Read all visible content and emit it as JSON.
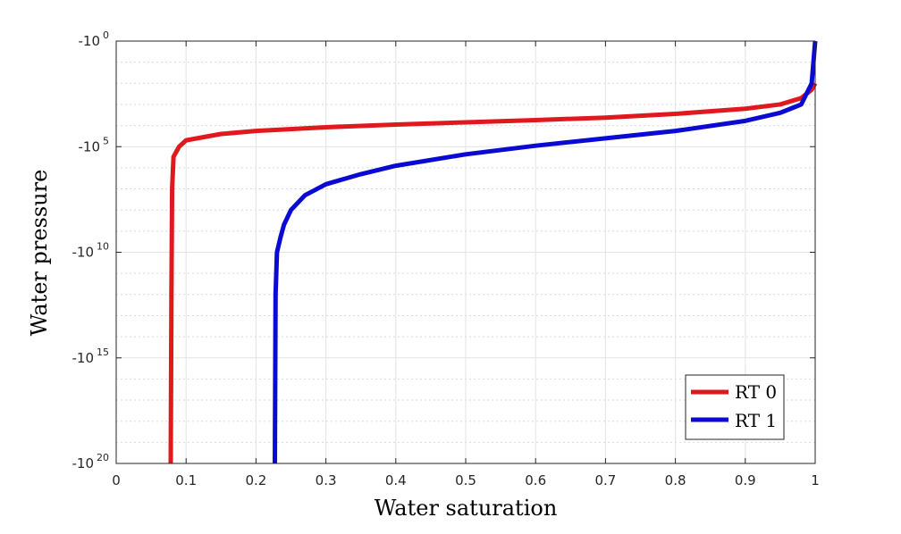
{
  "chart_data": {
    "type": "line",
    "title": "",
    "xlabel": "Water saturation",
    "ylabel": "Water pressure",
    "xlim": [
      0,
      1
    ],
    "ylim_log10_magnitude": [
      20,
      0
    ],
    "y_scale": "negative-log",
    "grid": true,
    "minor_grid": true,
    "legend_position": "bottom-right",
    "x_ticks": [
      "0",
      "0.1",
      "0.2",
      "0.3",
      "0.4",
      "0.5",
      "0.6",
      "0.7",
      "0.8",
      "0.9",
      "1"
    ],
    "y_ticks": [
      {
        "base": "-10",
        "exp": "0"
      },
      {
        "base": "-10",
        "exp": "5"
      },
      {
        "base": "-10",
        "exp": "10"
      },
      {
        "base": "-10",
        "exp": "15"
      },
      {
        "base": "-10",
        "exp": "20"
      }
    ],
    "series": [
      {
        "name": "RT 0",
        "color": "#e0191e",
        "points": [
          {
            "x": 0.078,
            "y": "-1e20"
          },
          {
            "x": 0.079,
            "y": "-1e12"
          },
          {
            "x": 0.08,
            "y": "-1e7"
          },
          {
            "x": 0.082,
            "y": "-3e5"
          },
          {
            "x": 0.09,
            "y": "-1e5"
          },
          {
            "x": 0.1,
            "y": "-5e4"
          },
          {
            "x": 0.15,
            "y": "-2.5e4"
          },
          {
            "x": 0.2,
            "y": "-1.8e4"
          },
          {
            "x": 0.3,
            "y": "-1.2e4"
          },
          {
            "x": 0.4,
            "y": "-9e3"
          },
          {
            "x": 0.5,
            "y": "-7e3"
          },
          {
            "x": 0.6,
            "y": "-5.5e3"
          },
          {
            "x": 0.7,
            "y": "-4.2e3"
          },
          {
            "x": 0.8,
            "y": "-2.8e3"
          },
          {
            "x": 0.9,
            "y": "-1.6e3"
          },
          {
            "x": 0.95,
            "y": "-1e3"
          },
          {
            "x": 0.98,
            "y": "-5e2"
          },
          {
            "x": 0.995,
            "y": "-2e2"
          },
          {
            "x": 1.0,
            "y": "-1e2"
          }
        ]
      },
      {
        "name": "RT 1",
        "color": "#0a0ad2",
        "points": [
          {
            "x": 0.227,
            "y": "-1e20"
          },
          {
            "x": 0.228,
            "y": "-1e12"
          },
          {
            "x": 0.23,
            "y": "-1e10"
          },
          {
            "x": 0.235,
            "y": "-2e9"
          },
          {
            "x": 0.24,
            "y": "-5e8"
          },
          {
            "x": 0.25,
            "y": "-1e8"
          },
          {
            "x": 0.27,
            "y": "-2e7"
          },
          {
            "x": 0.3,
            "y": "-6e6"
          },
          {
            "x": 0.35,
            "y": "-2e6"
          },
          {
            "x": 0.4,
            "y": "-8e5"
          },
          {
            "x": 0.5,
            "y": "-2.3e5"
          },
          {
            "x": 0.6,
            "y": "-9e4"
          },
          {
            "x": 0.7,
            "y": "-4e4"
          },
          {
            "x": 0.8,
            "y": "-1.8e4"
          },
          {
            "x": 0.9,
            "y": "-6e3"
          },
          {
            "x": 0.95,
            "y": "-2.5e3"
          },
          {
            "x": 0.98,
            "y": "-1e3"
          },
          {
            "x": 0.995,
            "y": "-1e2"
          },
          {
            "x": 1.0,
            "y": "-1e0"
          }
        ]
      }
    ]
  }
}
